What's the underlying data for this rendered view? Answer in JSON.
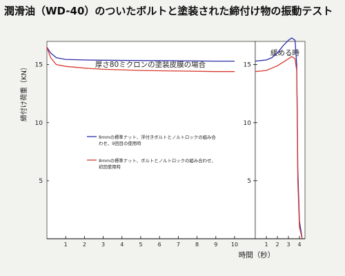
{
  "title": "潤滑油（WD-40）のついたボルトと塗装された締付け物の振動テスト",
  "colors": {
    "background": "#f2f2ee",
    "plot_area": "#ffffff",
    "series_blue": "#2a2aa8",
    "series_red": "#d8382c"
  },
  "chart_data": [
    {
      "type": "line",
      "title": "",
      "annotation": "厚さ80ミクロンの塗装皮膜の場合",
      "xlabel": "",
      "ylabel": "締付け荷重（KN）",
      "xlim": [
        0,
        10
      ],
      "ylim": [
        0,
        17
      ],
      "x_ticks": [
        "1",
        "2",
        "3",
        "4",
        "5",
        "6",
        "7",
        "8",
        "9",
        "10"
      ],
      "y_ticks": [
        "5",
        "10",
        "15"
      ],
      "grid": false,
      "legend_position": "left-middle",
      "series": [
        {
          "name": "8mmの標準ナット、浮付きボルトとノルトロックの組み合わせ、9回目の使用時",
          "color": "#2a2aa8",
          "x": [
            0,
            0.2,
            0.5,
            1,
            2,
            3,
            5,
            7,
            9,
            10
          ],
          "y": [
            16.5,
            16.0,
            15.6,
            15.45,
            15.4,
            15.38,
            15.35,
            15.33,
            15.3,
            15.3
          ]
        },
        {
          "name": "8mmの標準ナット、ボルトとノルトロックの組み合わせ、初回使用時",
          "color": "#d8382c",
          "x": [
            0,
            0.2,
            0.5,
            1,
            2,
            3,
            5,
            7,
            9,
            10
          ],
          "y": [
            16.5,
            15.6,
            15.0,
            14.85,
            14.7,
            14.6,
            14.5,
            14.45,
            14.4,
            14.4
          ]
        }
      ]
    },
    {
      "type": "line",
      "title": "",
      "annotation": "緩める時",
      "xlabel": "時間（秒）",
      "ylabel": "",
      "xlim": [
        0,
        4.5
      ],
      "ylim": [
        0,
        17
      ],
      "x_ticks": [
        "1",
        "2",
        "3",
        "4"
      ],
      "grid": false,
      "series": [
        {
          "name": "8mmの標準ナット、浮付きボルトとノルトロックの組み合わせ、9回目の使用時",
          "color": "#2a2aa8",
          "x": [
            0,
            1,
            1.5,
            2,
            2.5,
            3,
            3.3,
            3.6,
            3.75,
            3.8,
            3.85,
            4.0,
            4.25
          ],
          "y": [
            15.3,
            15.4,
            15.6,
            16.0,
            16.6,
            17.1,
            17.3,
            17.1,
            15.0,
            11.0,
            6.0,
            1.5,
            0
          ]
        },
        {
          "name": "8mmの標準ナット、ボルトとノルトロックの組み合わせ、初回使用時",
          "color": "#d8382c",
          "x": [
            0,
            1,
            1.5,
            2,
            2.5,
            3,
            3.3,
            3.6,
            3.75,
            3.8,
            3.85,
            4.0,
            4.25
          ],
          "y": [
            14.4,
            14.5,
            14.7,
            14.9,
            15.2,
            15.5,
            15.7,
            15.5,
            14.5,
            10.0,
            5.0,
            1.0,
            0
          ]
        }
      ]
    }
  ]
}
